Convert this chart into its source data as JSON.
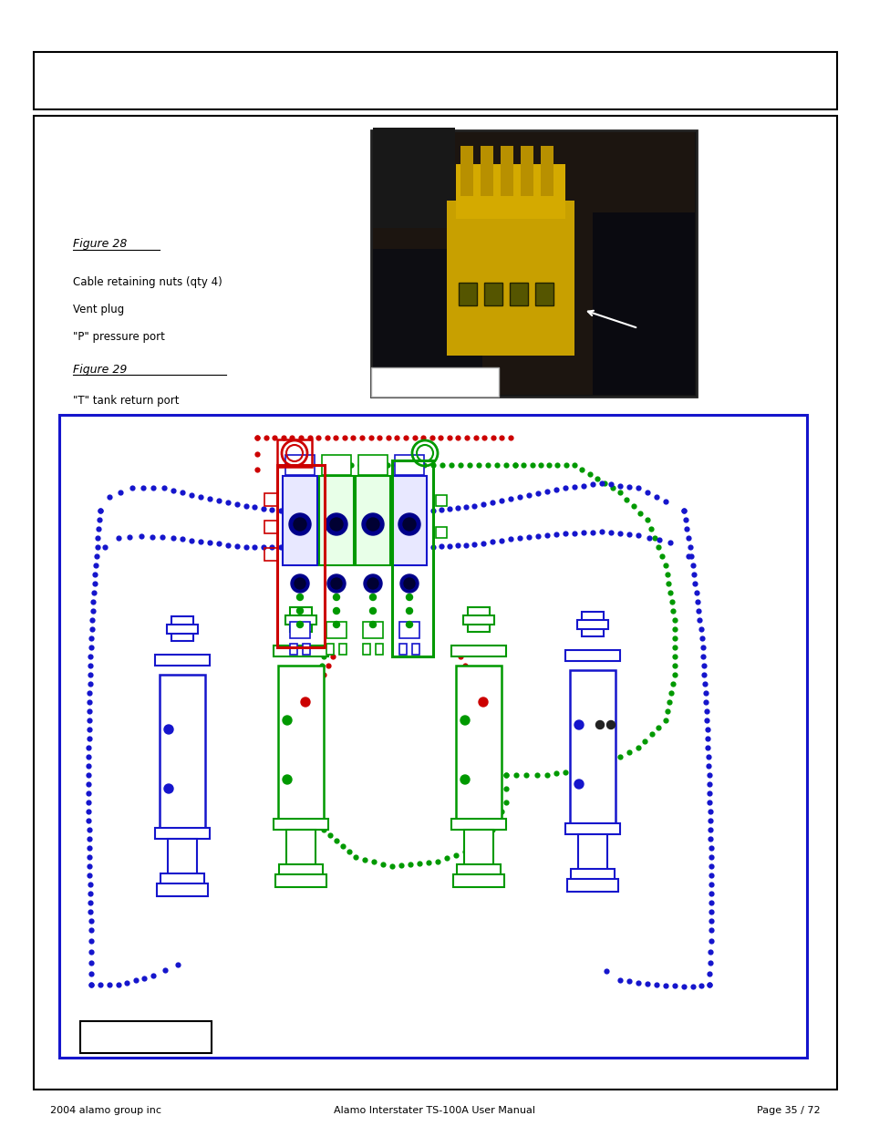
{
  "page_title": "",
  "top_box_text": "",
  "footer_left": "2004 alamo group inc",
  "footer_center": "Alamo Interstater TS-100A User Manual",
  "footer_right": "Page 35 / 72",
  "fig28_label": "Figure 28",
  "fig29_label": "Figure 29",
  "label1": "Cable retaining nuts (qty 4)",
  "label2": "Vent plug",
  "label3": "\"P\" pressure port",
  "label4": "\"T\" tank return port",
  "bg": "#ffffff",
  "black": "#000000",
  "blue": "#1515cc",
  "red": "#cc0000",
  "green": "#009900",
  "dark_navy": "#00008b",
  "gray_dk": "#333333",
  "gray_md": "#666666",
  "photo_dark": "#111111",
  "photo_bg2": "#222222"
}
